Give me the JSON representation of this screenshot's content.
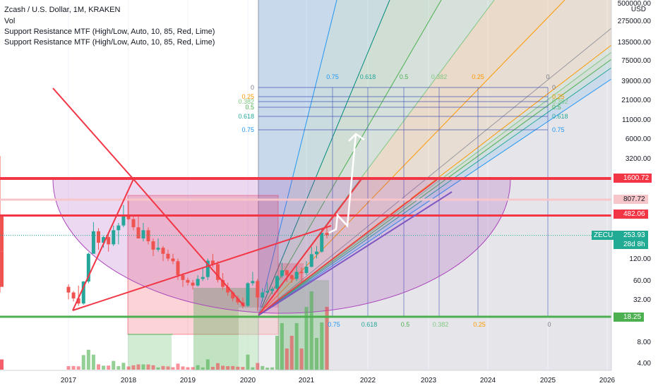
{
  "legend": {
    "title": "Zcash / U.S. Dollar, 1M, KRAKEN",
    "vol": "Vol",
    "indicator1": "Support Resistance MTF (High/Low, Auto, 10, 85, Red, Lime)",
    "indicator2": "Support Resistance MTF (High/Low, Auto, 10, 85, Red, Lime)"
  },
  "price_axis": {
    "currency": "USD",
    "ticks": [
      "500000.00",
      "275000.00",
      "135000.00",
      "75000.00",
      "39000.00",
      "21000.00",
      "11000.00",
      "6000.00",
      "3200.00",
      "1600.00",
      "807.72",
      "482.06",
      "253.93",
      "120.00",
      "60.00",
      "32.00",
      "18.25",
      "8.00",
      "4.00"
    ]
  },
  "tags": {
    "r1": "1600.72",
    "r2": "807.72",
    "r3": "482.06",
    "symbol": "ZECUSD",
    "last": "253.93",
    "countdown": "28d 8h",
    "s1": "18.25"
  },
  "colors": {
    "red": "#f23645",
    "green": "#4caf50",
    "fan_blue": "#2196f3",
    "fan_green": "#4caf50",
    "fan_orange": "#ff9800",
    "purple": "#9c27b0"
  },
  "chart_data": {
    "type": "candlestick",
    "title": "Zcash / U.S. Dollar, 1M, KRAKEN",
    "x_ticks": [
      "2017",
      "2018",
      "2019",
      "2020",
      "2021",
      "2022",
      "2023",
      "2024",
      "2025",
      "2026"
    ],
    "y_scale": "log",
    "y_ticks": [
      4,
      8,
      18.25,
      32,
      60,
      120,
      253.93,
      482.06,
      807.72,
      1600,
      3200,
      6000,
      11000,
      21000,
      39000,
      75000,
      135000,
      275000,
      500000
    ],
    "support_resistance_levels": [
      1600.72,
      807.72,
      482.06,
      18.25
    ],
    "last_price": 253.93,
    "fib_levels_top": [
      "0",
      "0.25",
      "0.382",
      "0.5",
      "0.618",
      "0.75"
    ],
    "fib_levels_bottom": [
      "0.75",
      "0.618",
      "0.5",
      "0.382",
      "0.25",
      "0"
    ],
    "monthly_ohlc_approx": [
      {
        "t": "2016-11",
        "o": 500,
        "h": 3300,
        "l": 40,
        "c": 150
      },
      {
        "t": "2016-12",
        "o": 150,
        "h": 160,
        "l": 40,
        "c": 48
      },
      {
        "t": "2017-01",
        "o": 48,
        "h": 52,
        "l": 32,
        "c": 40
      },
      {
        "t": "2017-02",
        "o": 40,
        "h": 42,
        "l": 30,
        "c": 33
      },
      {
        "t": "2017-03",
        "o": 33,
        "h": 50,
        "l": 26,
        "c": 28
      },
      {
        "t": "2017-04",
        "o": 28,
        "h": 58,
        "l": 27,
        "c": 57
      },
      {
        "t": "2017-05",
        "o": 57,
        "h": 145,
        "l": 54,
        "c": 140
      },
      {
        "t": "2017-06",
        "o": 140,
        "h": 390,
        "l": 140,
        "c": 290
      },
      {
        "t": "2017-07",
        "o": 290,
        "h": 320,
        "l": 160,
        "c": 200
      },
      {
        "t": "2017-08",
        "o": 200,
        "h": 250,
        "l": 170,
        "c": 240
      },
      {
        "t": "2017-09",
        "o": 240,
        "h": 280,
        "l": 150,
        "c": 190
      },
      {
        "t": "2017-10",
        "o": 190,
        "h": 350,
        "l": 180,
        "c": 300
      },
      {
        "t": "2017-11",
        "o": 300,
        "h": 380,
        "l": 190,
        "c": 350
      },
      {
        "t": "2017-12",
        "o": 350,
        "h": 680,
        "l": 330,
        "c": 500
      },
      {
        "t": "2018-01",
        "o": 500,
        "h": 800,
        "l": 420,
        "c": 430
      },
      {
        "t": "2018-02",
        "o": 430,
        "h": 500,
        "l": 300,
        "c": 330
      },
      {
        "t": "2018-03",
        "o": 330,
        "h": 470,
        "l": 300,
        "c": 230
      },
      {
        "t": "2018-04",
        "o": 230,
        "h": 380,
        "l": 210,
        "c": 300
      },
      {
        "t": "2018-05",
        "o": 300,
        "h": 330,
        "l": 190,
        "c": 210
      },
      {
        "t": "2018-06",
        "o": 210,
        "h": 230,
        "l": 130,
        "c": 160
      },
      {
        "t": "2018-07",
        "o": 160,
        "h": 230,
        "l": 150,
        "c": 170
      },
      {
        "t": "2018-08",
        "o": 170,
        "h": 180,
        "l": 110,
        "c": 140
      },
      {
        "t": "2018-09",
        "o": 140,
        "h": 160,
        "l": 110,
        "c": 120
      },
      {
        "t": "2018-10",
        "o": 120,
        "h": 140,
        "l": 100,
        "c": 110
      },
      {
        "t": "2018-11",
        "o": 110,
        "h": 120,
        "l": 60,
        "c": 70
      },
      {
        "t": "2018-12",
        "o": 70,
        "h": 75,
        "l": 48,
        "c": 60
      },
      {
        "t": "2019-01",
        "o": 60,
        "h": 65,
        "l": 50,
        "c": 55
      },
      {
        "t": "2019-02",
        "o": 55,
        "h": 60,
        "l": 44,
        "c": 50
      },
      {
        "t": "2019-03",
        "o": 50,
        "h": 70,
        "l": 48,
        "c": 62
      },
      {
        "t": "2019-04",
        "o": 62,
        "h": 90,
        "l": 58,
        "c": 66
      },
      {
        "t": "2019-05",
        "o": 66,
        "h": 120,
        "l": 60,
        "c": 112
      },
      {
        "t": "2019-06",
        "o": 112,
        "h": 140,
        "l": 90,
        "c": 100
      },
      {
        "t": "2019-07",
        "o": 100,
        "h": 110,
        "l": 55,
        "c": 60
      },
      {
        "t": "2019-08",
        "o": 60,
        "h": 75,
        "l": 44,
        "c": 48
      },
      {
        "t": "2019-09",
        "o": 48,
        "h": 55,
        "l": 36,
        "c": 40
      },
      {
        "t": "2019-10",
        "o": 40,
        "h": 42,
        "l": 30,
        "c": 33
      },
      {
        "t": "2019-11",
        "o": 33,
        "h": 36,
        "l": 27,
        "c": 29
      },
      {
        "t": "2019-12",
        "o": 29,
        "h": 34,
        "l": 24,
        "c": 26
      },
      {
        "t": "2020-01",
        "o": 26,
        "h": 56,
        "l": 25,
        "c": 54
      },
      {
        "t": "2020-02",
        "o": 54,
        "h": 78,
        "l": 50,
        "c": 58
      },
      {
        "t": "2020-03",
        "o": 58,
        "h": 62,
        "l": 22,
        "c": 34
      },
      {
        "t": "2020-04",
        "o": 34,
        "h": 46,
        "l": 30,
        "c": 40
      },
      {
        "t": "2020-05",
        "o": 40,
        "h": 55,
        "l": 38,
        "c": 42
      },
      {
        "t": "2020-06",
        "o": 42,
        "h": 48,
        "l": 38,
        "c": 45
      },
      {
        "t": "2020-07",
        "o": 45,
        "h": 70,
        "l": 42,
        "c": 68
      },
      {
        "t": "2020-08",
        "o": 68,
        "h": 105,
        "l": 64,
        "c": 82
      },
      {
        "t": "2020-09",
        "o": 82,
        "h": 84,
        "l": 56,
        "c": 70
      },
      {
        "t": "2020-10",
        "o": 70,
        "h": 72,
        "l": 55,
        "c": 62
      },
      {
        "t": "2020-11",
        "o": 62,
        "h": 95,
        "l": 58,
        "c": 78
      },
      {
        "t": "2020-12",
        "o": 78,
        "h": 90,
        "l": 56,
        "c": 75
      },
      {
        "t": "2021-01",
        "o": 75,
        "h": 110,
        "l": 70,
        "c": 92
      },
      {
        "t": "2021-02",
        "o": 92,
        "h": 175,
        "l": 90,
        "c": 138
      },
      {
        "t": "2021-03",
        "o": 138,
        "h": 180,
        "l": 120,
        "c": 150
      },
      {
        "t": "2021-04",
        "o": 150,
        "h": 320,
        "l": 145,
        "c": 275
      },
      {
        "t": "2021-05",
        "o": 275,
        "h": 330,
        "l": 230,
        "c": 253.93
      }
    ]
  }
}
